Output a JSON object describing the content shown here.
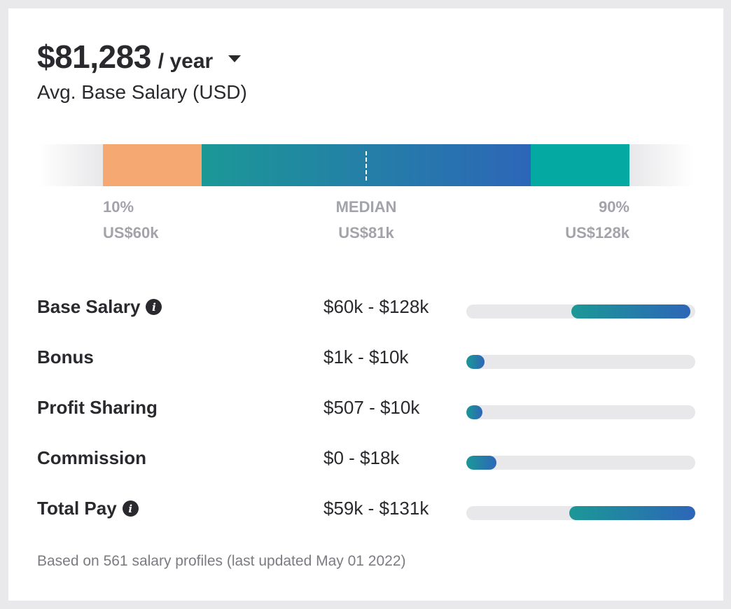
{
  "header": {
    "amount": "$81,283",
    "period": "/ year",
    "subtitle": "Avg. Base Salary (USD)"
  },
  "range_chart": {
    "low": {
      "label": "10%",
      "value": "US$60k"
    },
    "median": {
      "label": "MEDIAN",
      "value": "US$81k"
    },
    "high": {
      "label": "90%",
      "value": "US$128k"
    },
    "colors": {
      "low": "#f6a872",
      "mid_start": "#1b9896",
      "mid_end": "#2d66b8",
      "high": "#04aaa2"
    }
  },
  "pay_rows": [
    {
      "label": "Base Salary",
      "range": "$60k - $128k",
      "info": true,
      "fill_start": 0.46,
      "fill_end": 0.98
    },
    {
      "label": "Bonus",
      "range": "$1k - $10k",
      "info": false,
      "fill_start": 0.0,
      "fill_end": 0.08
    },
    {
      "label": "Profit Sharing",
      "range": "$507 - $10k",
      "info": false,
      "fill_start": 0.0,
      "fill_end": 0.07
    },
    {
      "label": "Commission",
      "range": "$0 - $18k",
      "info": false,
      "fill_start": 0.0,
      "fill_end": 0.13
    },
    {
      "label": "Total Pay",
      "range": "$59k - $131k",
      "info": true,
      "fill_start": 0.45,
      "fill_end": 1.0
    }
  ],
  "footer": "Based on 561 salary profiles (last updated May 01 2022)"
}
